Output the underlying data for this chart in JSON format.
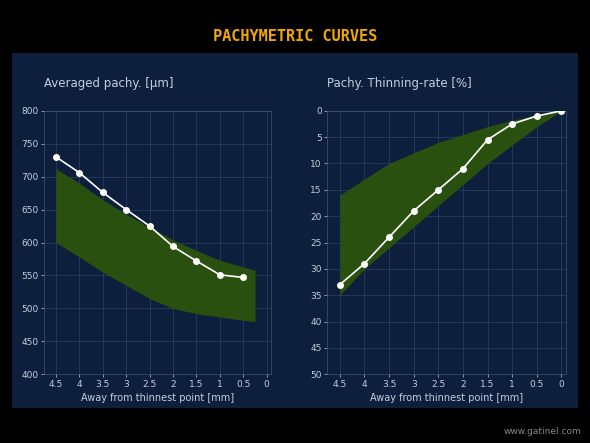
{
  "bg_color": "#000000",
  "panel_bg": "#0d1f3c",
  "grid_color": "#3a5878",
  "title": "PACHYMETRIC CURVES",
  "title_color": "#f0a800",
  "title_fontsize": 11,
  "watermark": "www.gatinel.com",
  "watermark_color": "#888888",
  "left_title": "Averaged pachy. [μm]",
  "left_xlabel": "Away from thinnest point [mm]",
  "left_xlim": [
    4.75,
    -0.1
  ],
  "left_ylim": [
    400,
    800
  ],
  "left_yticks": [
    400,
    450,
    500,
    550,
    600,
    650,
    700,
    750,
    800
  ],
  "left_xticks": [
    4.5,
    4.0,
    3.5,
    3.0,
    2.5,
    2.0,
    1.5,
    1.0,
    0.5,
    0.0
  ],
  "left_patient_x": [
    4.5,
    4.0,
    3.5,
    3.0,
    2.5,
    2.0,
    1.5,
    1.0,
    0.5
  ],
  "left_patient_y": [
    730,
    706,
    676,
    650,
    625,
    594,
    572,
    551,
    547
  ],
  "left_upper_x": [
    4.5,
    4.0,
    3.5,
    3.0,
    2.5,
    2.0,
    1.5,
    1.0,
    0.5,
    0.25
  ],
  "left_upper_y": [
    712,
    690,
    665,
    643,
    623,
    604,
    588,
    573,
    563,
    558
  ],
  "left_lower_x": [
    4.5,
    4.0,
    3.5,
    3.0,
    2.5,
    2.0,
    1.5,
    1.0,
    0.5,
    0.25
  ],
  "left_lower_y": [
    600,
    578,
    555,
    535,
    515,
    500,
    492,
    487,
    482,
    480
  ],
  "right_title": "Pachy. Thinning-rate [%]",
  "right_xlabel": "Away from thinnest point [mm]",
  "right_xlim": [
    4.75,
    -0.1
  ],
  "right_ylim": [
    50,
    0
  ],
  "right_yticks": [
    0,
    5,
    10,
    15,
    20,
    25,
    30,
    35,
    40,
    45,
    50
  ],
  "right_xticks": [
    4.5,
    4.0,
    3.5,
    3.0,
    2.5,
    2.0,
    1.5,
    1.0,
    0.5,
    0.0
  ],
  "right_patient_x": [
    4.5,
    4.0,
    3.5,
    3.0,
    2.5,
    2.0,
    1.5,
    1.0,
    0.5,
    0.0
  ],
  "right_patient_y": [
    33,
    29,
    24,
    19,
    15,
    11,
    5.5,
    2.5,
    1.0,
    0.0
  ],
  "right_upper_x": [
    4.5,
    4.0,
    3.5,
    3.0,
    2.5,
    2.0,
    1.5,
    1.0,
    0.5,
    0.0
  ],
  "right_upper_y": [
    16,
    13,
    10,
    8,
    6,
    4.5,
    3,
    1.8,
    0.8,
    0.0
  ],
  "right_lower_x": [
    4.5,
    4.0,
    3.5,
    3.0,
    2.5,
    2.0,
    1.5,
    1.0,
    0.5,
    0.0
  ],
  "right_lower_y": [
    35,
    30,
    26,
    22,
    18,
    14,
    10,
    6.5,
    3,
    0.0
  ],
  "line_color": "#ffffff",
  "line_width": 1.2,
  "marker_color": "#ffffff",
  "marker_size": 4,
  "band_color": "#2a5010",
  "band_alpha": 1.0,
  "text_color": "#c0d0e0",
  "label_fontsize": 7,
  "tick_fontsize": 6.5,
  "axis_title_fontsize": 8.5
}
